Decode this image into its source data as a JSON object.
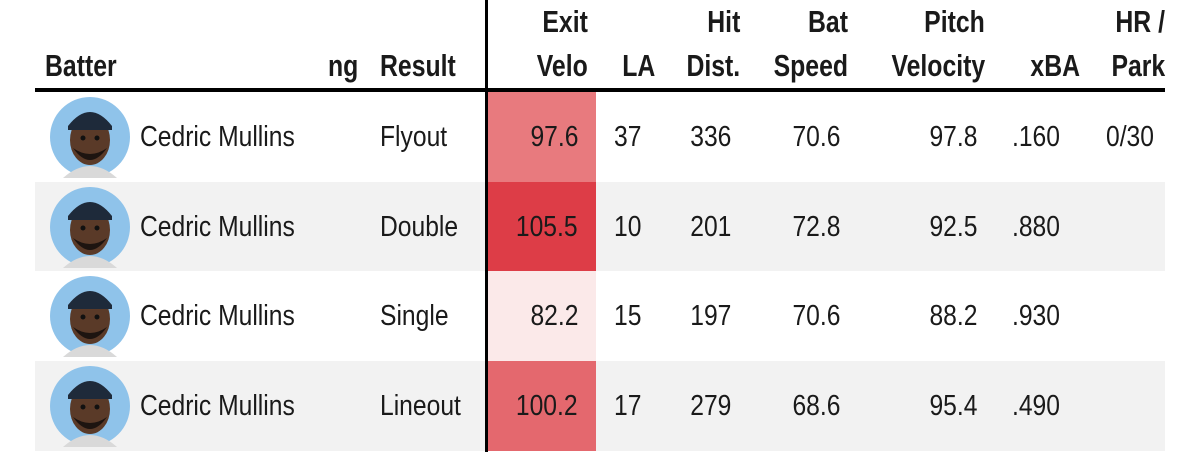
{
  "table": {
    "columns": [
      [
        "Batter"
      ],
      [
        "ng"
      ],
      [
        "Result"
      ],
      [
        "Exit",
        "Velo"
      ],
      [
        "LA"
      ],
      [
        "Hit",
        "Dist."
      ],
      [
        "Bat",
        "Speed"
      ],
      [
        "Pitch",
        "Velocity"
      ],
      [
        "xBA"
      ],
      [
        "HR /",
        "Park"
      ]
    ],
    "rows": [
      [
        "Cedric Mullins",
        "",
        "Flyout",
        "97.6",
        "37",
        "336",
        "70.6",
        "97.8",
        ".160",
        "0/30"
      ],
      [
        "Cedric Mullins",
        "",
        "Double",
        "105.5",
        "10",
        "201",
        "72.8",
        "92.5",
        ".880",
        ""
      ],
      [
        "Cedric Mullins",
        "",
        "Single",
        "82.2",
        "15",
        "197",
        "70.6",
        "88.2",
        ".930",
        ""
      ],
      [
        "Cedric Mullins",
        "",
        "Lineout",
        "100.2",
        "17",
        "279",
        "68.6",
        "95.4",
        ".490",
        ""
      ]
    ],
    "exit_velo_colors": [
      "#e87a7e",
      "#dd3d47",
      "#fbe9e9",
      "#e4686e"
    ]
  }
}
